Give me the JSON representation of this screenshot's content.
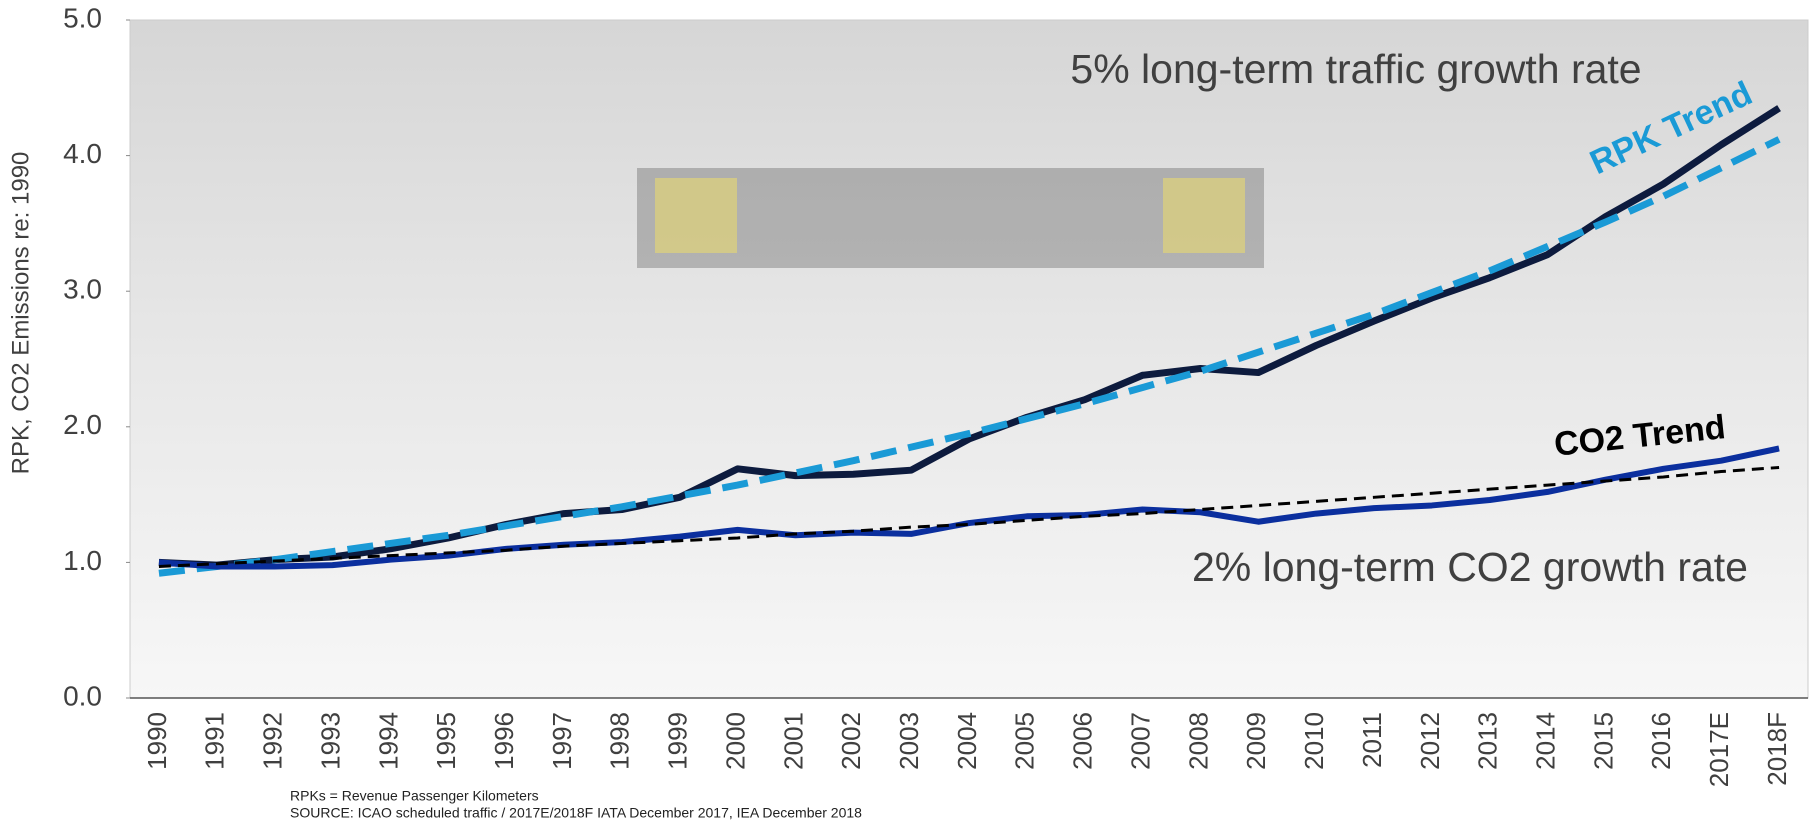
{
  "chart_data": {
    "type": "line",
    "y_label": "RPK, CO2 Emissions re: 1990",
    "categories": [
      "1990",
      "1991",
      "1992",
      "1993",
      "1994",
      "1995",
      "1996",
      "1997",
      "1998",
      "1999",
      "2000",
      "2001",
      "2002",
      "2003",
      "2004",
      "2005",
      "2006",
      "2007",
      "2008",
      "2009",
      "2010",
      "2011",
      "2012",
      "2013",
      "2014",
      "2015",
      "2016",
      "2017E",
      "2018F"
    ],
    "series": [
      {
        "color": "#0d1b3e",
        "dashed": false,
        "width": 7,
        "values": [
          1.0,
          0.98,
          1.02,
          1.04,
          1.1,
          1.18,
          1.28,
          1.36,
          1.39,
          1.48,
          1.69,
          1.64,
          1.65,
          1.68,
          1.91,
          2.07,
          2.2,
          2.38,
          2.43,
          2.4,
          2.6,
          2.78,
          2.95,
          3.1,
          3.27,
          3.55,
          3.79,
          4.08,
          4.35
        ]
      },
      {
        "name": "RPK Trend",
        "color": "#1a9ad6",
        "dashed": true,
        "width": 7,
        "values": [
          0.92,
          0.97,
          1.02,
          1.08,
          1.14,
          1.2,
          1.27,
          1.34,
          1.41,
          1.49,
          1.57,
          1.66,
          1.75,
          1.85,
          1.95,
          2.06,
          2.17,
          2.29,
          2.41,
          2.55,
          2.69,
          2.83,
          2.99,
          3.15,
          3.33,
          3.51,
          3.7,
          3.91,
          4.12
        ]
      },
      {
        "color": "#0b2f9e",
        "dashed": false,
        "width": 6,
        "values": [
          1.0,
          0.97,
          0.97,
          0.98,
          1.02,
          1.05,
          1.1,
          1.13,
          1.15,
          1.19,
          1.24,
          1.2,
          1.22,
          1.21,
          1.29,
          1.34,
          1.35,
          1.39,
          1.37,
          1.3,
          1.36,
          1.4,
          1.42,
          1.46,
          1.52,
          1.61,
          1.69,
          1.75,
          1.84
        ]
      },
      {
        "name": "CO2 Trend",
        "color": "#000000",
        "dashed": true,
        "width": 3,
        "values": [
          0.97,
          0.99,
          1.01,
          1.03,
          1.05,
          1.07,
          1.09,
          1.12,
          1.14,
          1.16,
          1.18,
          1.21,
          1.23,
          1.26,
          1.28,
          1.31,
          1.34,
          1.36,
          1.39,
          1.42,
          1.45,
          1.48,
          1.51,
          1.54,
          1.57,
          1.6,
          1.63,
          1.67,
          1.7
        ]
      }
    ],
    "ylim": [
      0,
      5
    ],
    "yticks": [
      {
        "value": 0,
        "label": "0.0"
      },
      {
        "value": 1,
        "label": "1.0"
      },
      {
        "value": 2,
        "label": "2.0"
      },
      {
        "value": 3,
        "label": "3.0"
      },
      {
        "value": 4,
        "label": "4.0"
      },
      {
        "value": 5,
        "label": "5.0"
      }
    ],
    "annotations": [
      "5% long-term traffic growth rate",
      "2% long-term CO2 growth rate"
    ],
    "footnotes": [
      "RPKs = Revenue Passenger Kilometers",
      "SOURCE: ICAO scheduled traffic / 2017E/2018F IATA December 2017, IEA December 2018"
    ]
  }
}
